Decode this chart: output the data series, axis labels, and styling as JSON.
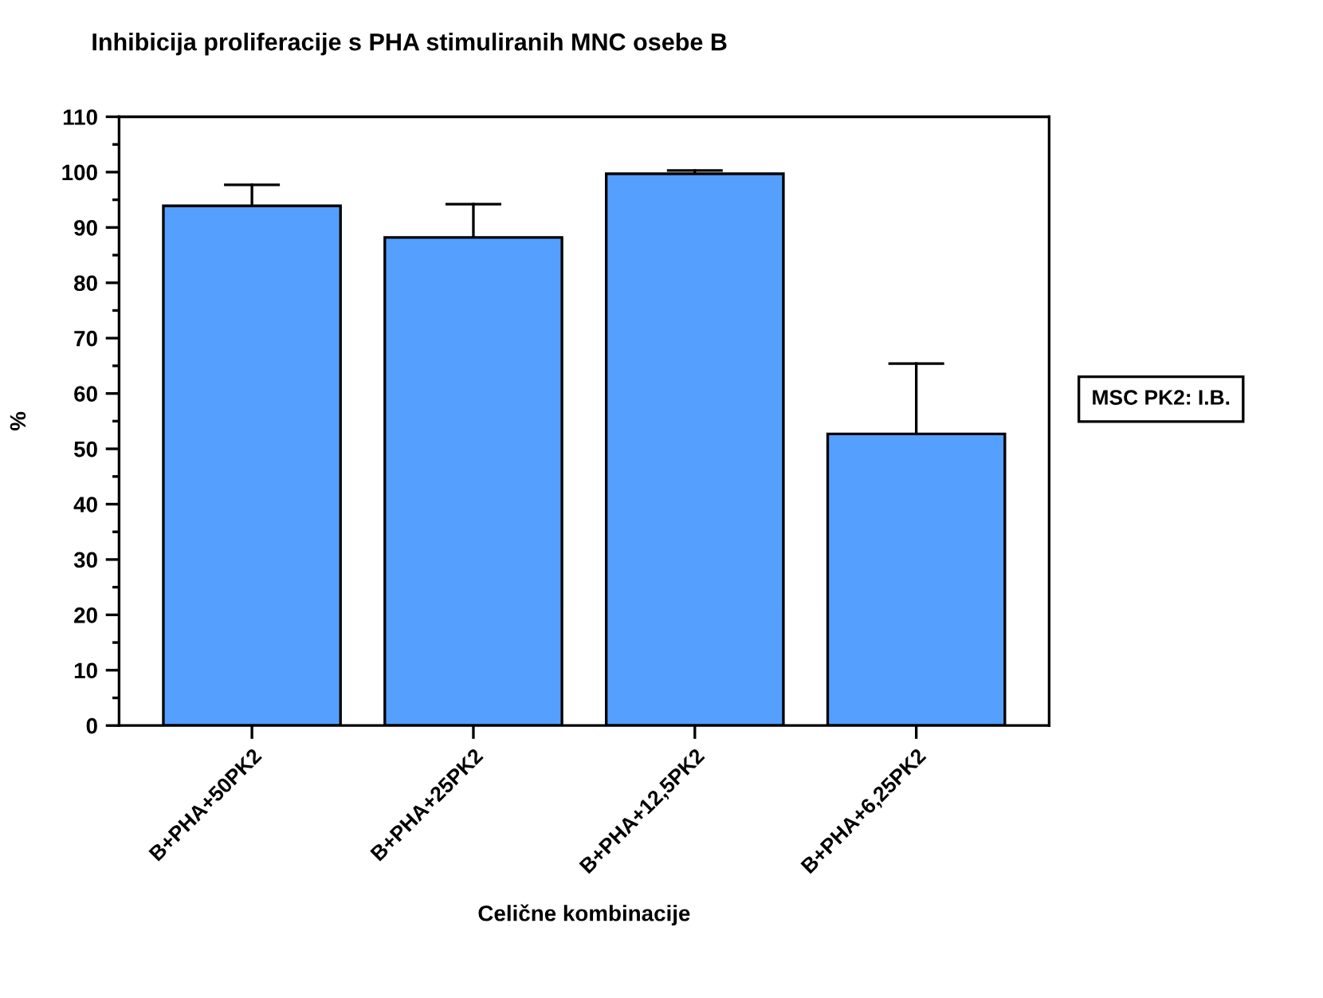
{
  "chart_data": {
    "type": "bar",
    "title": "Inhibicija proliferacije s PHA stimuliranih MNC osebe B",
    "xlabel": "Celične kombinacije",
    "ylabel": "%",
    "categories": [
      "B+PHA+50PK2",
      "B+PHA+25PK2",
      "B+PHA+12,5PK2",
      "B+PHA+6,25PK2"
    ],
    "values": [
      93.9,
      88.2,
      99.7,
      52.7
    ],
    "errors": [
      [
        93.9,
        97.7
      ],
      [
        88.2,
        94.2
      ],
      [
        99.7,
        100.3
      ],
      [
        52.7,
        65.4
      ]
    ],
    "color": "#559fff",
    "ylim": [
      0,
      110
    ],
    "yticks": [
      0,
      10,
      20,
      30,
      40,
      50,
      60,
      70,
      80,
      90,
      100,
      110
    ],
    "annotations": [
      "MSC PK2: I.B."
    ],
    "grid": false
  }
}
